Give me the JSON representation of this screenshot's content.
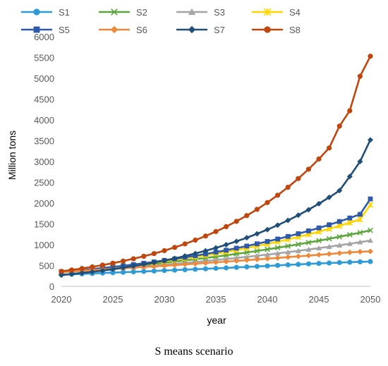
{
  "caption": "S means scenario",
  "chart_data": {
    "type": "line",
    "title": "",
    "xlabel": "year",
    "ylabel": "Million tons",
    "xlim": [
      2020,
      2050
    ],
    "ylim": [
      0,
      6000
    ],
    "x_ticks": [
      "2020",
      "2025",
      "2030",
      "2035",
      "2040",
      "2045",
      "2050"
    ],
    "y_ticks": [
      "0",
      "500",
      "1000",
      "1500",
      "2000",
      "2500",
      "3000",
      "3500",
      "4000",
      "4500",
      "5000",
      "5500",
      "6000"
    ],
    "grid": false,
    "legend_position": "top",
    "x": [
      2020,
      2021,
      2022,
      2023,
      2024,
      2025,
      2026,
      2027,
      2028,
      2029,
      2030,
      2031,
      2032,
      2033,
      2034,
      2035,
      2036,
      2037,
      2038,
      2039,
      2040,
      2041,
      2042,
      2043,
      2044,
      2045,
      2046,
      2047,
      2048,
      2049,
      2050
    ],
    "series": [
      {
        "name": "S1",
        "color": "#2e9bd6",
        "marker": "circle",
        "values": [
          280,
          289,
          299,
          308,
          318,
          328,
          338,
          348,
          358,
          368,
          379,
          389,
          400,
          410,
          421,
          432,
          443,
          455,
          466,
          478,
          490,
          503,
          515,
          527,
          539,
          550,
          560,
          570,
          580,
          588,
          595
        ]
      },
      {
        "name": "S2",
        "color": "#5aa63c",
        "marker": "x",
        "values": [
          340,
          359,
          379,
          400,
          421,
          443,
          466,
          490,
          514,
          540,
          566,
          594,
          622,
          651,
          681,
          713,
          745,
          779,
          814,
          850,
          888,
          927,
          967,
          1009,
          1052,
          1097,
          1143,
          1191,
          1240,
          1290,
          1345
        ]
      },
      {
        "name": "S3",
        "color": "#a5a5a5",
        "marker": "triangle",
        "values": [
          330,
          347,
          364,
          382,
          400,
          418,
          437,
          456,
          476,
          496,
          517,
          539,
          561,
          584,
          607,
          631,
          656,
          682,
          708,
          735,
          763,
          792,
          822,
          853,
          885,
          918,
          952,
          987,
          1024,
          1062,
          1100
        ]
      },
      {
        "name": "S4",
        "color": "#ffd500",
        "marker": "star",
        "values": [
          340,
          361,
          383,
          406,
          430,
          455,
          481,
          509,
          538,
          569,
          601,
          634,
          669,
          706,
          744,
          785,
          827,
          872,
          918,
          967,
          1018,
          1072,
          1128,
          1187,
          1249,
          1314,
          1382,
          1454,
          1529,
          1608,
          1960
        ]
      },
      {
        "name": "S5",
        "color": "#2e5aac",
        "marker": "square",
        "values": [
          345,
          367,
          390,
          414,
          439,
          466,
          494,
          523,
          554,
          587,
          622,
          658,
          696,
          736,
          778,
          822,
          868,
          917,
          968,
          1022,
          1078,
          1137,
          1199,
          1264,
          1332,
          1404,
          1479,
          1558,
          1642,
          1730,
          2100
        ]
      },
      {
        "name": "S6",
        "color": "#f0883a",
        "marker": "diamond",
        "values": [
          350,
          363,
          377,
          391,
          405,
          419,
          434,
          449,
          464,
          479,
          495,
          511,
          527,
          543,
          560,
          577,
          594,
          611,
          629,
          647,
          665,
          683,
          702,
          720,
          739,
          758,
          777,
          796,
          815,
          830,
          840
        ]
      },
      {
        "name": "S7",
        "color": "#1f4e79",
        "marker": "diamond",
        "values": [
          270,
          294,
          320,
          348,
          378,
          411,
          447,
          485,
          527,
          572,
          620,
          672,
          728,
          789,
          854,
          924,
          1000,
          1081,
          1168,
          1262,
          1363,
          1470,
          1585,
          1709,
          1842,
          1985,
          2138,
          2300,
          2640,
          3000,
          3520
        ]
      },
      {
        "name": "S8",
        "color": "#c0460e",
        "marker": "circle",
        "values": [
          360,
          393,
          428,
          467,
          510,
          556,
          607,
          662,
          722,
          787,
          858,
          935,
          1019,
          1110,
          1209,
          1317,
          1434,
          1562,
          1700,
          1850,
          2013,
          2190,
          2381,
          2590,
          2815,
          3060,
          3325,
          3850,
          4220,
          5050,
          5530
        ]
      }
    ]
  }
}
